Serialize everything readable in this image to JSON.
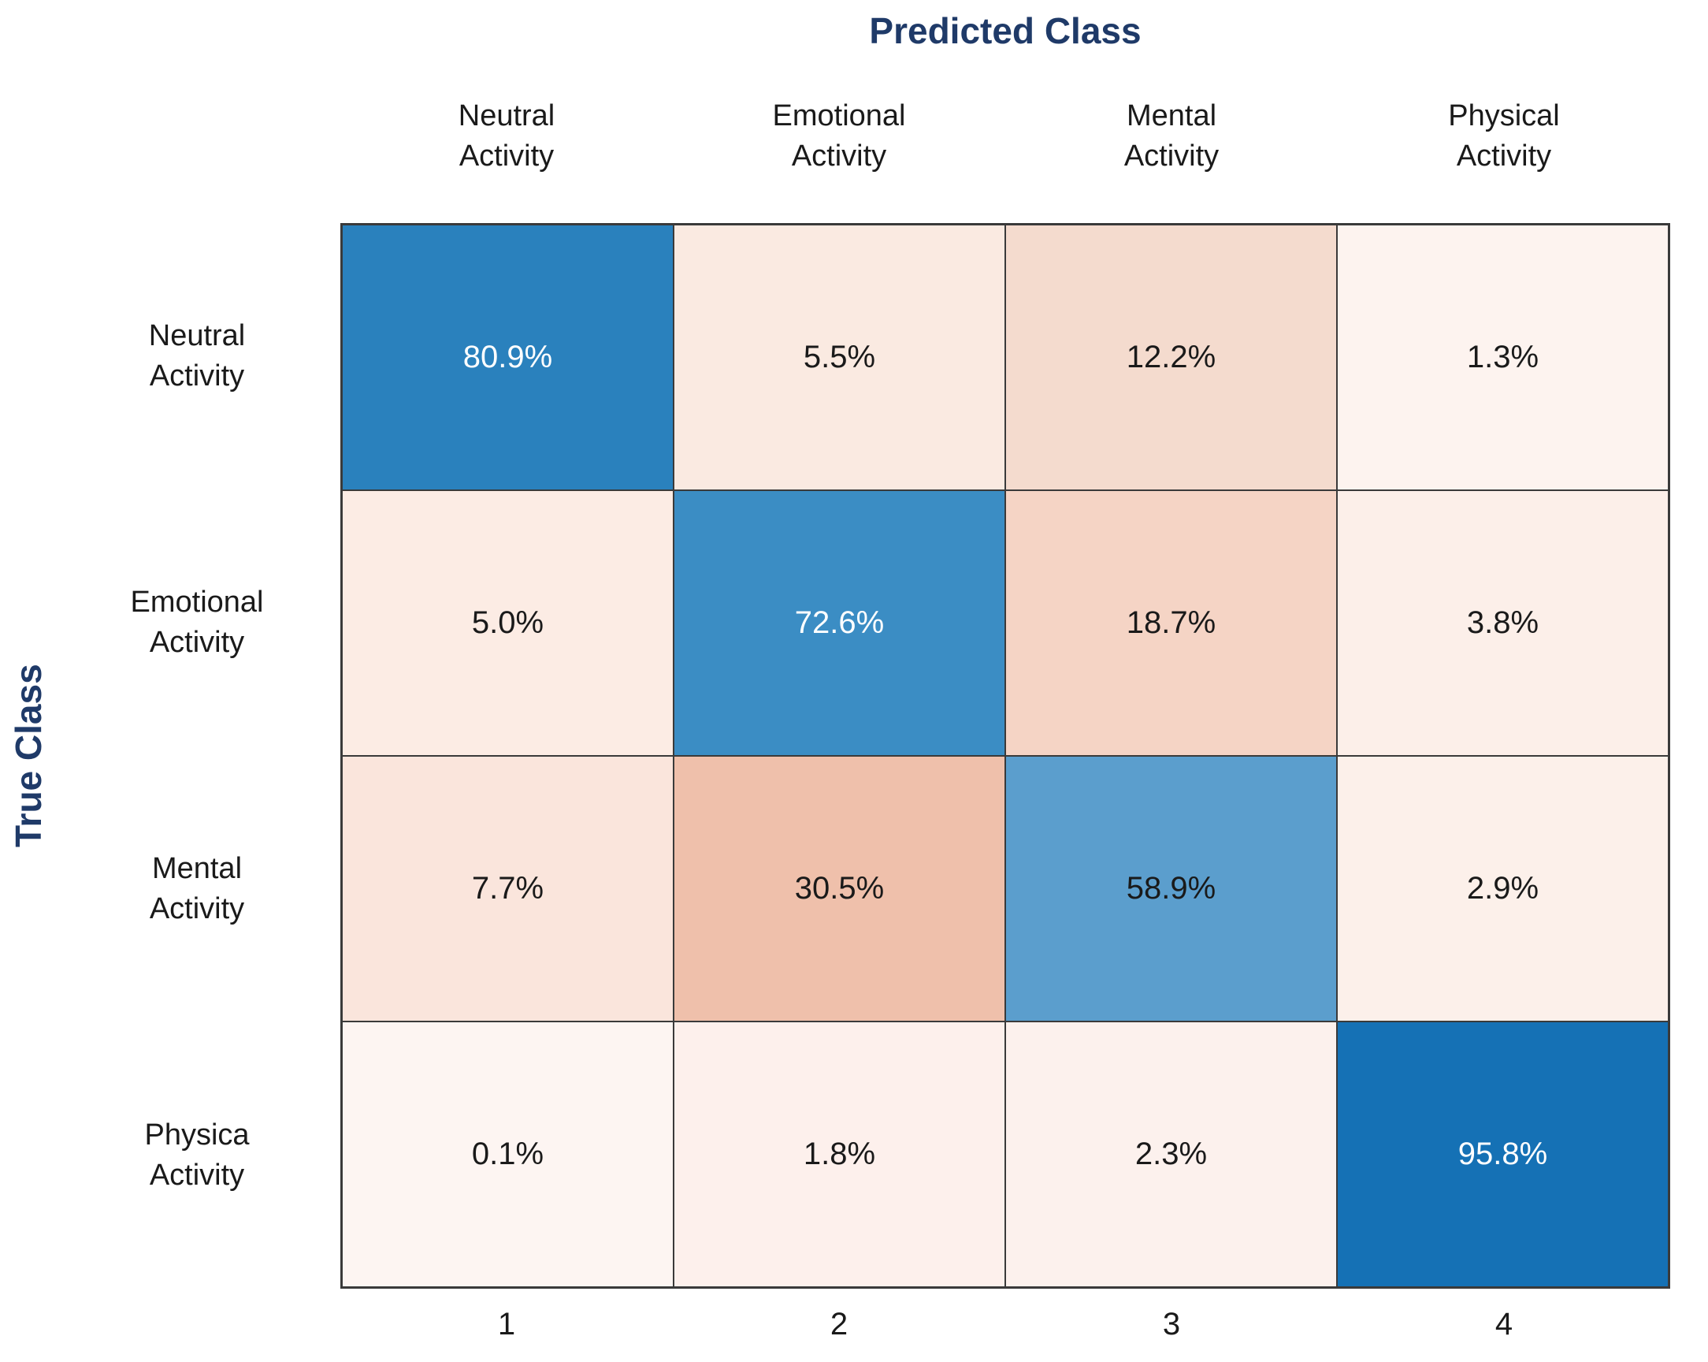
{
  "chart_data": {
    "type": "heatmap",
    "subtype": "confusion-matrix",
    "x_axis_title": "Predicted Class",
    "y_axis_title": "True Class",
    "col_headers": [
      "Neutral\nActivity",
      "Emotional\nActivity",
      "Mental\nActivity",
      "Physical\nActivity"
    ],
    "row_headers": [
      "Neutral\nActivity",
      "Emotional\nActivity",
      "Mental\nActivity",
      "Physica\nActivity"
    ],
    "x_tick_labels": [
      "1",
      "2",
      "3",
      "4"
    ],
    "values_percent": [
      [
        80.9,
        5.5,
        12.2,
        1.3
      ],
      [
        5.0,
        72.6,
        18.7,
        3.8
      ],
      [
        7.7,
        30.5,
        58.9,
        2.9
      ],
      [
        0.1,
        1.8,
        2.3,
        95.8
      ]
    ],
    "cells": [
      [
        {
          "label": "80.9%",
          "bg": "#2a81bd",
          "text_color": "#ffffff"
        },
        {
          "label": "5.5%",
          "bg": "#faeae1",
          "text_color": "#1a1a1a"
        },
        {
          "label": "12.2%",
          "bg": "#f4dbce",
          "text_color": "#1a1a1a"
        },
        {
          "label": "1.3%",
          "bg": "#fdf3ef",
          "text_color": "#1a1a1a"
        }
      ],
      [
        {
          "label": "5.0%",
          "bg": "#fcece4",
          "text_color": "#1a1a1a"
        },
        {
          "label": "72.6%",
          "bg": "#3b8dc4",
          "text_color": "#ffffff"
        },
        {
          "label": "18.7%",
          "bg": "#f5d4c5",
          "text_color": "#1a1a1a"
        },
        {
          "label": "3.8%",
          "bg": "#fcefe9",
          "text_color": "#1a1a1a"
        }
      ],
      [
        {
          "label": "7.7%",
          "bg": "#fae5dc",
          "text_color": "#1a1a1a"
        },
        {
          "label": "30.5%",
          "bg": "#efc0ab",
          "text_color": "#1a1a1a"
        },
        {
          "label": "58.9%",
          "bg": "#5b9ecd",
          "text_color": "#1a1a1a"
        },
        {
          "label": "2.9%",
          "bg": "#fcf0ea",
          "text_color": "#1a1a1a"
        }
      ],
      [
        {
          "label": "0.1%",
          "bg": "#fdf5f2",
          "text_color": "#1a1a1a"
        },
        {
          "label": "1.8%",
          "bg": "#fdf0ec",
          "text_color": "#1a1a1a"
        },
        {
          "label": "2.3%",
          "bg": "#fcf1ed",
          "text_color": "#1a1a1a"
        },
        {
          "label": "95.8%",
          "bg": "#1571b5",
          "text_color": "#ffffff"
        }
      ]
    ],
    "layout": {
      "legend": "none",
      "grid_line_color": "#3a3a3a",
      "axis_title_color": "#1f3a68",
      "background": "#ffffff"
    }
  }
}
